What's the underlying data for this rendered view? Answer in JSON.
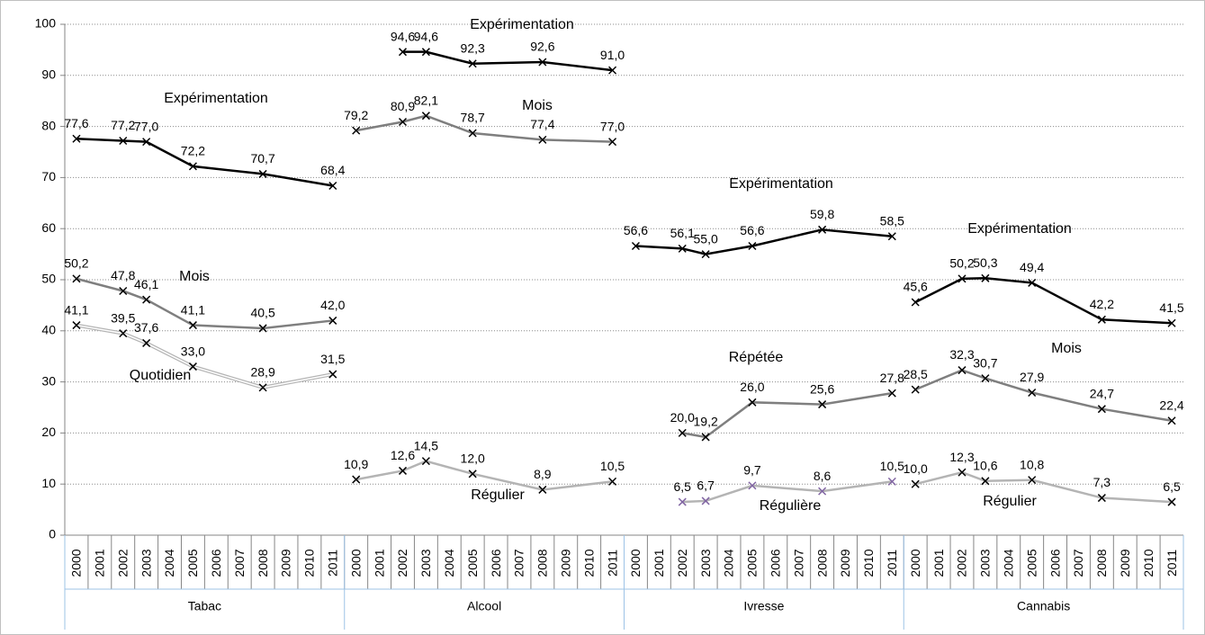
{
  "chart_data": {
    "type": "line",
    "ylim": [
      0,
      100
    ],
    "yticks": [
      0,
      10,
      20,
      30,
      40,
      50,
      60,
      70,
      80,
      90,
      100
    ],
    "grid": true,
    "groups": [
      {
        "name": "Tabac",
        "categories": [
          "2000",
          "2001",
          "2002",
          "2003",
          "2004",
          "2005",
          "2006",
          "2007",
          "2008",
          "2009",
          "2010",
          "2011"
        ],
        "series": [
          {
            "name": "Expérimentation",
            "color": "#000000",
            "x": [
              "2000",
              "2002",
              "2003",
              "2005",
              "2008",
              "2011"
            ],
            "values": [
              77.6,
              77.2,
              77.0,
              72.2,
              70.7,
              68.4
            ],
            "value_labels": [
              "77,6",
              "77,2",
              "77,0",
              "72,2",
              "70,7",
              "68,4"
            ]
          },
          {
            "name": "Mois",
            "color": "#7f7f7f",
            "x": [
              "2000",
              "2002",
              "2003",
              "2005",
              "2008",
              "2011"
            ],
            "values": [
              50.2,
              47.8,
              46.1,
              41.1,
              40.5,
              42.0
            ],
            "value_labels": [
              "50,2",
              "47,8",
              "46,1",
              "41,1",
              "40,5",
              "42,0"
            ]
          },
          {
            "name": "Quotidien",
            "color": "#b4b4b4",
            "x": [
              "2000",
              "2002",
              "2003",
              "2005",
              "2008",
              "2011"
            ],
            "values": [
              41.1,
              39.5,
              37.6,
              33.0,
              28.9,
              31.5
            ],
            "value_labels": [
              "41,1",
              "39,5",
              "37,6",
              "33,0",
              "28,9",
              "31,5"
            ]
          }
        ]
      },
      {
        "name": "Alcool",
        "categories": [
          "2000",
          "2001",
          "2002",
          "2003",
          "2004",
          "2005",
          "2006",
          "2007",
          "2008",
          "2009",
          "2010",
          "2011"
        ],
        "series": [
          {
            "name": "Expérimentation",
            "color": "#000000",
            "x": [
              "2002",
              "2003",
              "2005",
              "2008",
              "2011"
            ],
            "values": [
              94.6,
              94.6,
              92.3,
              92.6,
              91.0
            ],
            "value_labels": [
              "94,6",
              "94,6",
              "92,3",
              "92,6",
              "91,0"
            ]
          },
          {
            "name": "Mois",
            "color": "#7f7f7f",
            "x": [
              "2000",
              "2002",
              "2003",
              "2005",
              "2008",
              "2011"
            ],
            "values": [
              79.2,
              80.9,
              82.1,
              78.7,
              77.4,
              77.0
            ],
            "value_labels": [
              "79,2",
              "80,9",
              "82,1",
              "78,7",
              "77,4",
              "77,0"
            ]
          },
          {
            "name": "Régulier",
            "color": "#b4b4b4",
            "x": [
              "2000",
              "2002",
              "2003",
              "2005",
              "2008",
              "2011"
            ],
            "values": [
              10.9,
              12.6,
              14.5,
              12.0,
              8.9,
              10.5
            ],
            "value_labels": [
              "10,9",
              "12,6",
              "14,5",
              "12,0",
              "8,9",
              "10,5"
            ]
          }
        ]
      },
      {
        "name": "Ivresse",
        "categories": [
          "2000",
          "2001",
          "2002",
          "2003",
          "2004",
          "2005",
          "2006",
          "2007",
          "2008",
          "2009",
          "2010",
          "2011"
        ],
        "series": [
          {
            "name": "Expérimentation",
            "color": "#000000",
            "x": [
              "2000",
              "2002",
              "2003",
              "2005",
              "2008",
              "2011"
            ],
            "values": [
              56.6,
              56.1,
              55.0,
              56.6,
              59.8,
              58.5
            ],
            "value_labels": [
              "56,6",
              "56,1",
              "55,0",
              "56,6",
              "59,8",
              "58,5"
            ]
          },
          {
            "name": "Répétée",
            "color": "#7f7f7f",
            "x": [
              "2002",
              "2003",
              "2005",
              "2008",
              "2011"
            ],
            "values": [
              20.0,
              19.2,
              26.0,
              25.6,
              27.8
            ],
            "value_labels": [
              "20,0",
              "19,2",
              "26,0",
              "25,6",
              "27,8"
            ]
          },
          {
            "name": "Régulière",
            "color": "#b4b4b4",
            "x": [
              "2002",
              "2003",
              "2005",
              "2008",
              "2011"
            ],
            "values": [
              6.5,
              6.7,
              9.7,
              8.6,
              10.5
            ],
            "value_labels": [
              "6,5",
              "6,7",
              "9,7",
              "8,6",
              "10,5"
            ]
          }
        ]
      },
      {
        "name": "Cannabis",
        "categories": [
          "2000",
          "2001",
          "2002",
          "2003",
          "2004",
          "2005",
          "2006",
          "2007",
          "2008",
          "2009",
          "2010",
          "2011"
        ],
        "series": [
          {
            "name": "Expérimentation",
            "color": "#000000",
            "x": [
              "2000",
              "2002",
              "2003",
              "2005",
              "2008",
              "2011"
            ],
            "values": [
              45.6,
              50.2,
              50.3,
              49.4,
              42.2,
              41.5
            ],
            "value_labels": [
              "45,6",
              "50,2",
              "50,3",
              "49,4",
              "42,2",
              "41,5"
            ]
          },
          {
            "name": "Mois",
            "color": "#7f7f7f",
            "x": [
              "2000",
              "2002",
              "2003",
              "2005",
              "2008",
              "2011"
            ],
            "values": [
              28.5,
              32.3,
              30.7,
              27.9,
              24.7,
              22.4
            ],
            "value_labels": [
              "28,5",
              "32,3",
              "30,7",
              "27,9",
              "24,7",
              "22,4"
            ]
          },
          {
            "name": "Régulier",
            "color": "#b4b4b4",
            "x": [
              "2000",
              "2002",
              "2003",
              "2005",
              "2008",
              "2011"
            ],
            "values": [
              10.0,
              12.3,
              10.6,
              10.8,
              7.3,
              6.5
            ],
            "value_labels": [
              "10,0",
              "12,3",
              "10,6",
              "10,8",
              "7,3",
              "6,5"
            ]
          }
        ]
      }
    ]
  }
}
